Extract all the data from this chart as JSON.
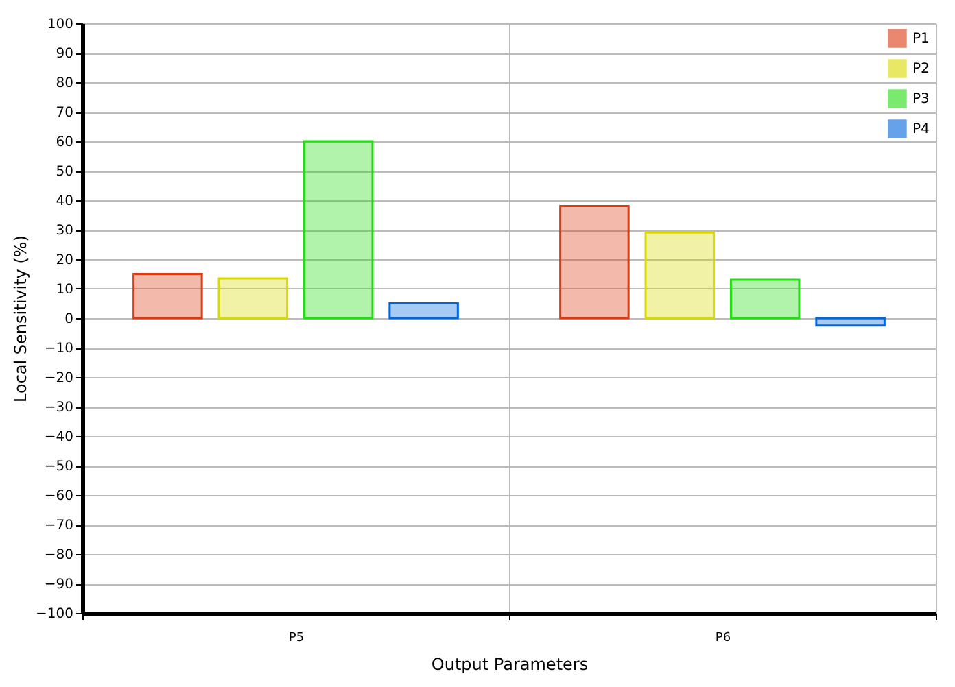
{
  "chart_data": {
    "type": "bar",
    "categories": [
      "P5",
      "P6"
    ],
    "series": [
      {
        "name": "P1",
        "color": "#dd3a10",
        "values": [
          15,
          38
        ]
      },
      {
        "name": "P2",
        "color": "#d9d900",
        "values": [
          13.5,
          29
        ]
      },
      {
        "name": "P3",
        "color": "#22dd11",
        "values": [
          60,
          13
        ]
      },
      {
        "name": "P4",
        "color": "#0066dd",
        "values": [
          5,
          -2.5
        ]
      }
    ],
    "xlabel": "Output Parameters",
    "ylabel": "Local Sensitivity (%)",
    "ylim": [
      -100,
      100
    ],
    "yticks": [
      -100,
      -90,
      -80,
      -70,
      -60,
      -50,
      -40,
      -30,
      -20,
      -10,
      0,
      10,
      20,
      30,
      40,
      50,
      60,
      70,
      80,
      90,
      100
    ],
    "grid": true,
    "legend": "top right"
  }
}
